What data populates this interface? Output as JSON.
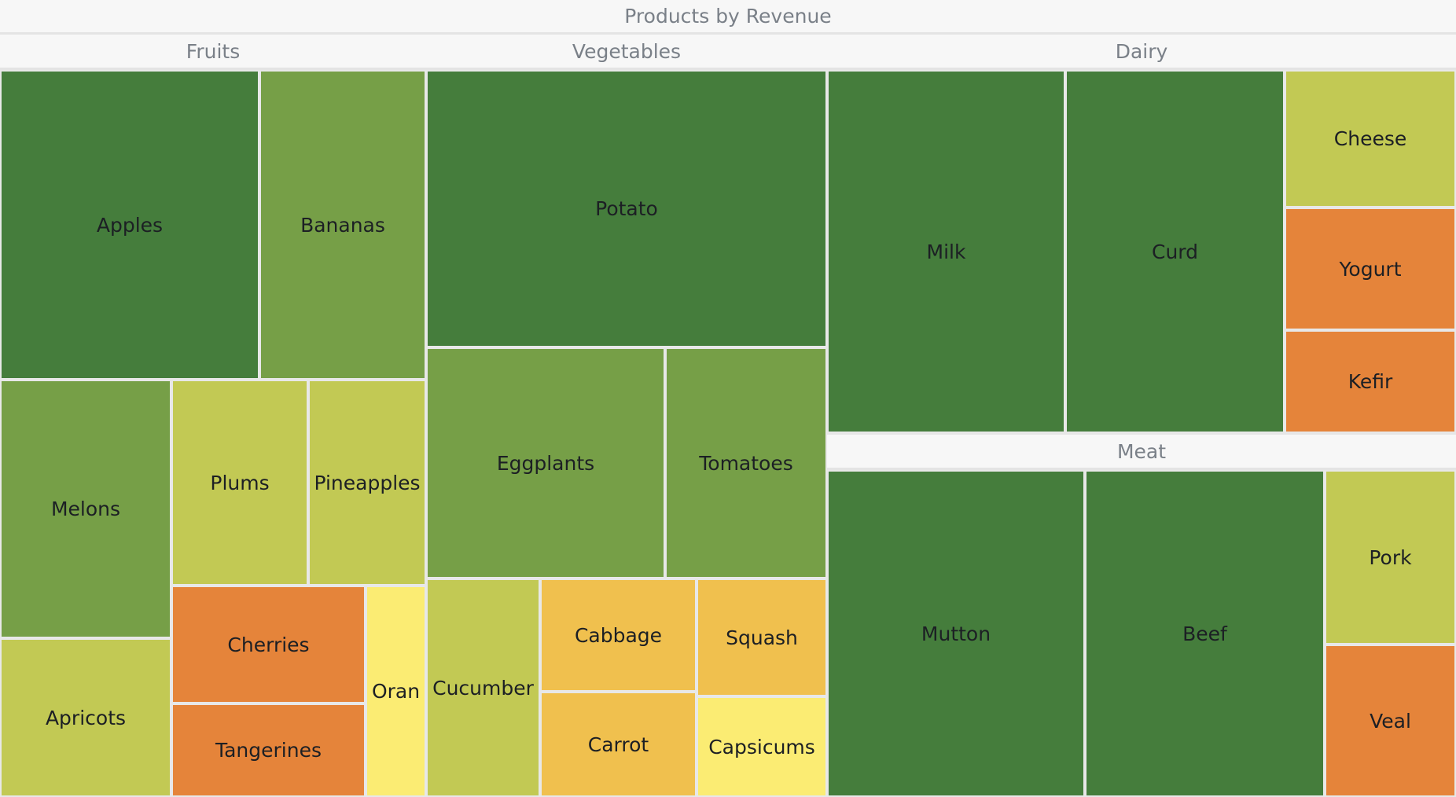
{
  "chart_data": {
    "type": "treemap",
    "title": "Products by Revenue",
    "colors": {
      "dark_green": "#457d3c",
      "mid_green": "#769f47",
      "yellow_green": "#c2c954",
      "orange": "#e5843a",
      "amber": "#f0c04e",
      "light_yellow": "#fbec73",
      "header_bg": "#f7f7f7",
      "header_text": "#7a8088"
    },
    "groups": [
      {
        "name": "Fruits",
        "items": [
          {
            "name": "Apples",
            "color": "dark_green"
          },
          {
            "name": "Bananas",
            "color": "mid_green"
          },
          {
            "name": "Melons",
            "color": "mid_green"
          },
          {
            "name": "Plums",
            "color": "yellow_green"
          },
          {
            "name": "Pineapples",
            "color": "yellow_green"
          },
          {
            "name": "Apricots",
            "color": "yellow_green"
          },
          {
            "name": "Cherries",
            "color": "orange"
          },
          {
            "name": "Tangerines",
            "color": "orange"
          },
          {
            "name": "Oran",
            "color": "light_yellow"
          }
        ]
      },
      {
        "name": "Vegetables",
        "items": [
          {
            "name": "Potato",
            "color": "dark_green"
          },
          {
            "name": "Eggplants",
            "color": "mid_green"
          },
          {
            "name": "Tomatoes",
            "color": "mid_green"
          },
          {
            "name": "Cucumber",
            "color": "yellow_green"
          },
          {
            "name": "Cabbage",
            "color": "amber"
          },
          {
            "name": "Squash",
            "color": "amber"
          },
          {
            "name": "Carrot",
            "color": "amber"
          },
          {
            "name": "Capsicums",
            "color": "light_yellow"
          }
        ]
      },
      {
        "name": "Dairy",
        "items": [
          {
            "name": "Milk",
            "color": "dark_green"
          },
          {
            "name": "Curd",
            "color": "dark_green"
          },
          {
            "name": "Cheese",
            "color": "yellow_green"
          },
          {
            "name": "Yogurt",
            "color": "orange"
          },
          {
            "name": "Kefir",
            "color": "orange"
          }
        ]
      },
      {
        "name": "Meat",
        "items": [
          {
            "name": "Mutton",
            "color": "dark_green"
          },
          {
            "name": "Beef",
            "color": "dark_green"
          },
          {
            "name": "Pork",
            "color": "yellow_green"
          },
          {
            "name": "Veal",
            "color": "orange"
          }
        ]
      }
    ]
  }
}
